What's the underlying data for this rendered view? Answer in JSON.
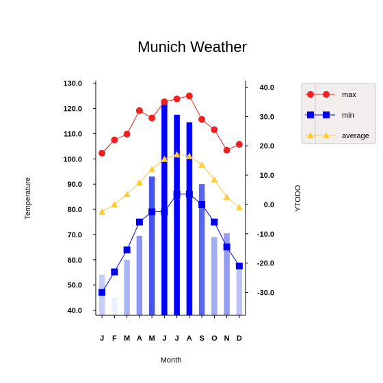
{
  "chart_data": {
    "type": "bar",
    "title": "Munich Weather",
    "xlabel": "Month",
    "ylabel": "Temperature",
    "y2label": "YTODO",
    "categories": [
      "J",
      "F",
      "M",
      "A",
      "M",
      "J",
      "J",
      "A",
      "S",
      "O",
      "N",
      "D"
    ],
    "ylim": [
      38.0,
      131.0
    ],
    "yticks": [
      "40.0",
      "50.0",
      "60.0",
      "70.0",
      "80.0",
      "90.0",
      "100.0",
      "110.0",
      "120.0",
      "130.0"
    ],
    "y2lim": [
      -37.8,
      42.2
    ],
    "y2ticks": [
      "-30.0",
      "-20.0",
      "-10.0",
      "0.0",
      "10.0",
      "20.0",
      "30.0",
      "40.0"
    ],
    "grid": false,
    "legend_position": "top-right",
    "bars": {
      "axis": "left",
      "values": [
        54,
        45,
        60,
        69.5,
        93,
        123,
        117.5,
        114.5,
        90,
        69,
        70.5,
        56
      ],
      "colors": [
        "#c6cdf7",
        "#eef0fc",
        "#a9b3f5",
        "#8c96f1",
        "#4656eb",
        "#0000ff",
        "#0000ff",
        "#0000ff",
        "#5a66ec",
        "#a4adf4",
        "#939cf1",
        "#bac2f6"
      ]
    },
    "series": [
      {
        "name": "max",
        "axis": "right",
        "color": "#ee2222",
        "marker": "circle",
        "values": [
          17.5,
          22,
          24,
          32,
          29.5,
          35,
          36,
          37,
          29,
          25.5,
          18.5,
          20.5
        ]
      },
      {
        "name": "min",
        "axis": "right",
        "color": "#0000ee",
        "marker": "square",
        "values": [
          -30,
          -23,
          -15.5,
          -6,
          -2.5,
          -2.5,
          3.5,
          3.5,
          0,
          -6,
          -14.5,
          -21
        ]
      },
      {
        "name": "average",
        "axis": "right",
        "color": "#ffcc33",
        "marker": "triangle",
        "values": [
          -2.5,
          0,
          3.5,
          7.5,
          12,
          15.5,
          17,
          16.5,
          13.5,
          8.5,
          2.5,
          -1
        ]
      }
    ]
  }
}
